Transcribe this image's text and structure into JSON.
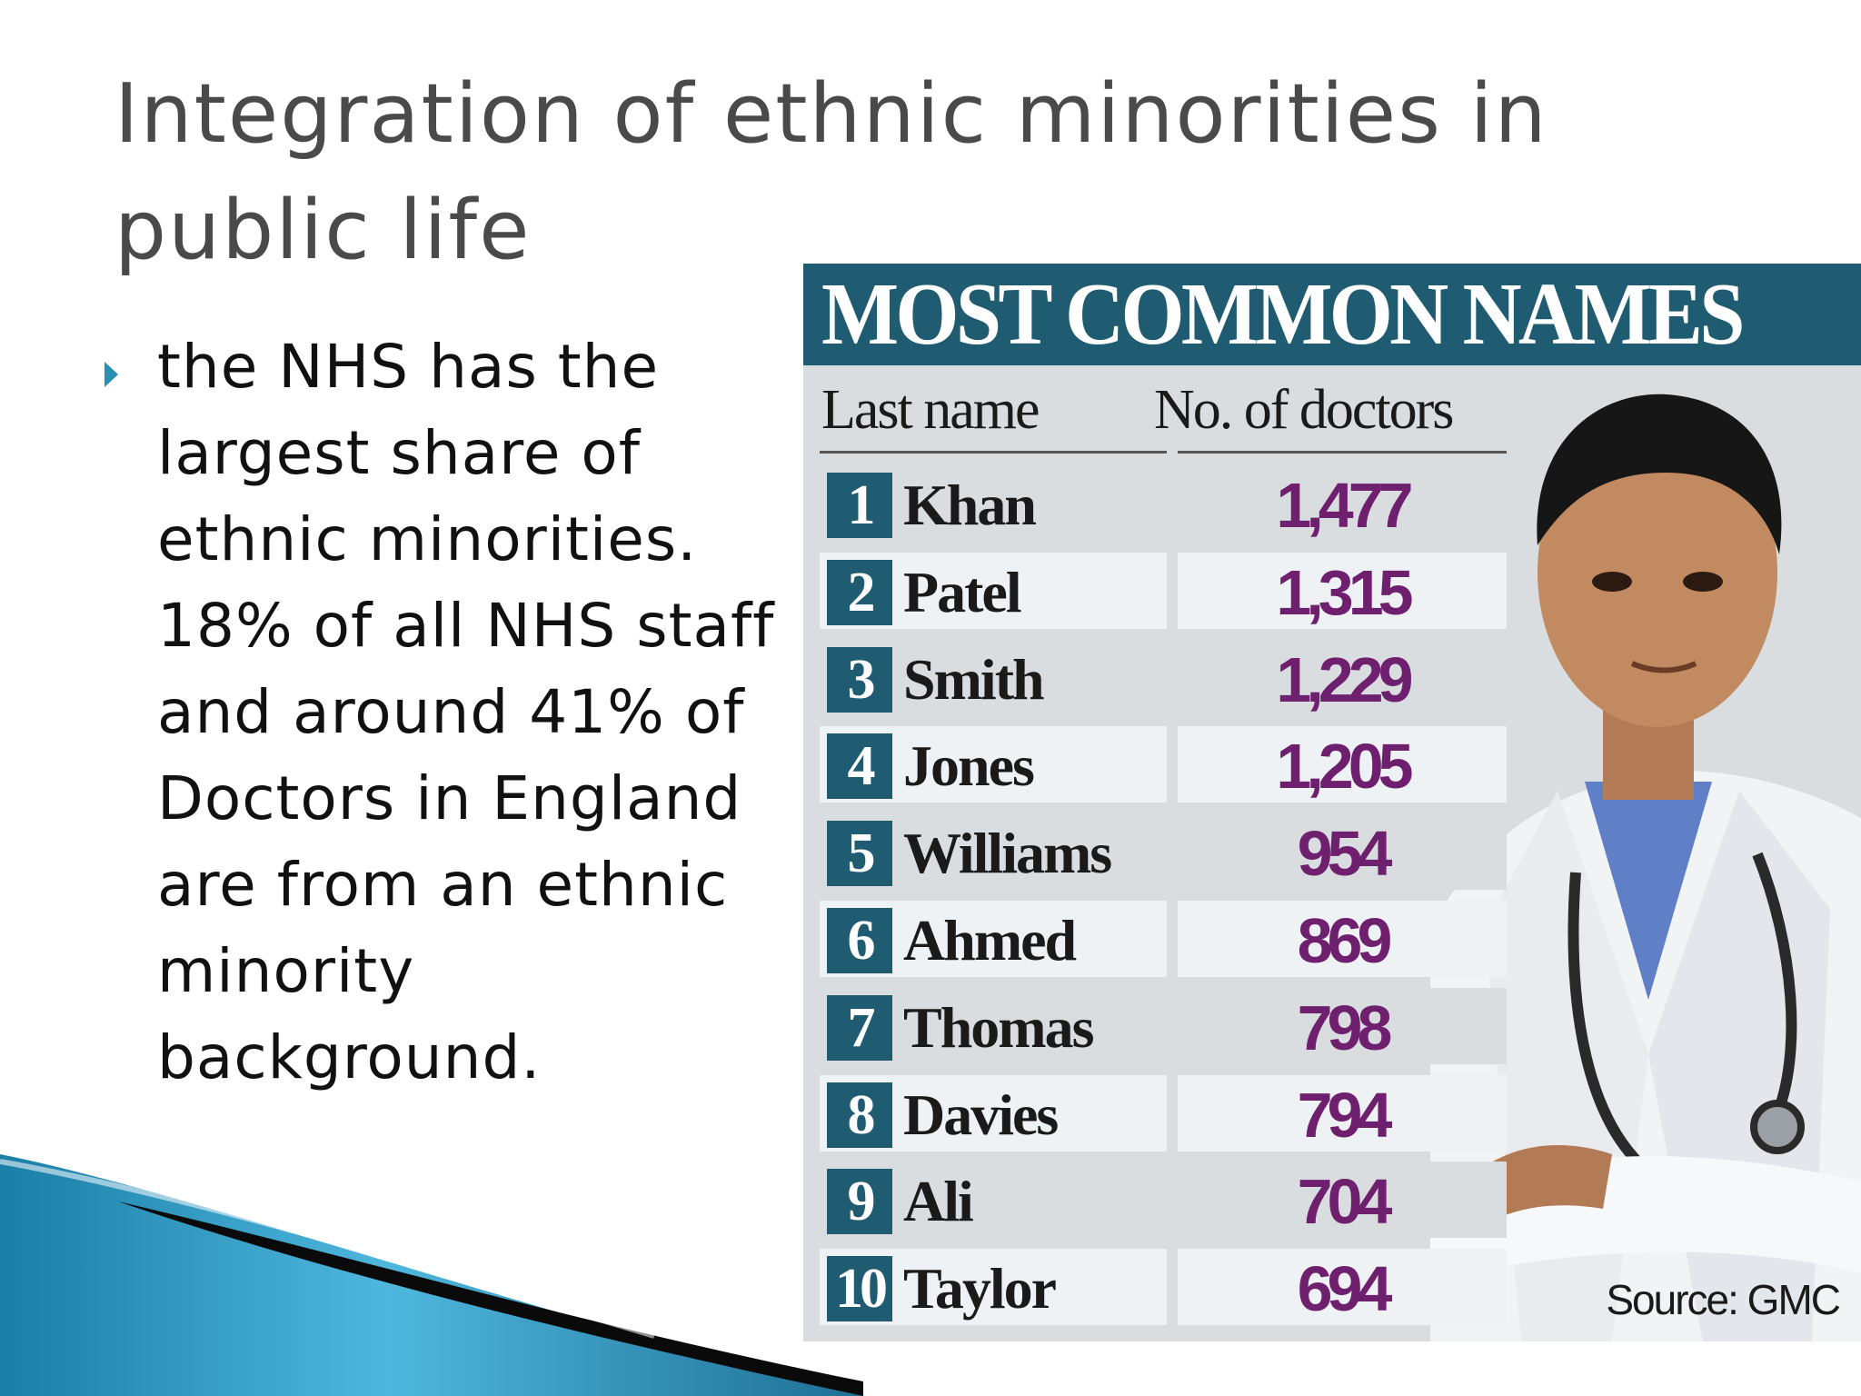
{
  "slide": {
    "title": "Integration of ethnic minorities in public life",
    "bullet": "the NHS has the\nlargest share of\nethnic minorities.\n18% of all NHS staff\nand around 41% of\nDoctors in England\nare from an ethnic\nminority\nbackground."
  },
  "infographic": {
    "heading": "MOST COMMON NAMES",
    "columns": {
      "name": "Last name",
      "count": "No. of doctors"
    },
    "rows": [
      {
        "rank": "1",
        "name": "Khan",
        "count": "1,477"
      },
      {
        "rank": "2",
        "name": "Patel",
        "count": "1,315"
      },
      {
        "rank": "3",
        "name": "Smith",
        "count": "1,229"
      },
      {
        "rank": "4",
        "name": "Jones",
        "count": "1,205"
      },
      {
        "rank": "5",
        "name": "Williams",
        "count": "954"
      },
      {
        "rank": "6",
        "name": "Ahmed",
        "count": "869"
      },
      {
        "rank": "7",
        "name": "Thomas",
        "count": "798"
      },
      {
        "rank": "8",
        "name": "Davies",
        "count": "794"
      },
      {
        "rank": "9",
        "name": "Ali",
        "count": "704"
      },
      {
        "rank": "10",
        "name": "Taylor",
        "count": "694"
      }
    ],
    "source": "Source: GMC",
    "colors": {
      "header_bg": "#1f5c72",
      "number_text": "#6e1f6e",
      "panel_bg": "#d9dde0"
    }
  },
  "decorations": {
    "bullet_icon": "triangle-right-icon",
    "accent": "#2b8fb3"
  }
}
